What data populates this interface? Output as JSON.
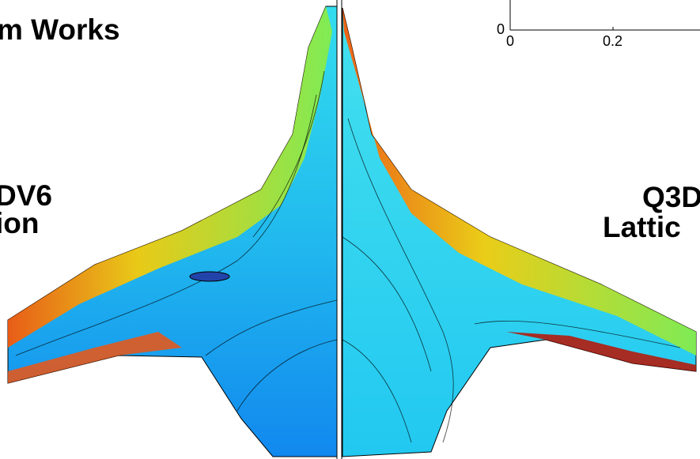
{
  "slide": {
    "title_line": "m Works",
    "left_label": [
      "DV6",
      "ion"
    ],
    "right_label": [
      "Q3D",
      "Lattic"
    ],
    "inset_axis": {
      "y_tick": "0",
      "x_ticks": [
        "0",
        "0.2"
      ]
    }
  }
}
